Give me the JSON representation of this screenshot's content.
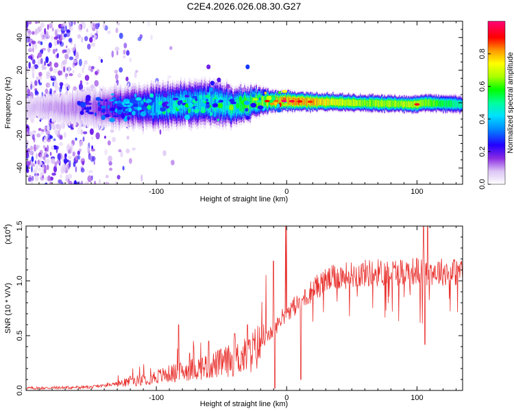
{
  "title": "C2E4.2026.026.08.30.G27",
  "chart_data": [
    {
      "type": "heatmap",
      "name": "spectrogram",
      "xlabel": "Height of straight line (km)",
      "ylabel": "Frequency (Hz)",
      "xlim": [
        -200,
        135
      ],
      "ylim": [
        -50,
        50
      ],
      "xticks": [
        -100,
        0,
        100
      ],
      "yticks": [
        -40,
        -20,
        0,
        20,
        40
      ],
      "colorbar": {
        "label": "Normalized spectral amplitude",
        "range": [
          0.0,
          1.0
        ],
        "ticks": [
          0.0,
          0.2,
          0.4,
          0.6,
          0.8
        ]
      },
      "band_center_hz": [
        [
          -200,
          -3
        ],
        [
          -150,
          -3
        ],
        [
          -100,
          -2
        ],
        [
          -60,
          0
        ],
        [
          -40,
          -2
        ],
        [
          -20,
          1
        ],
        [
          0,
          1
        ],
        [
          50,
          0
        ],
        [
          100,
          -1
        ],
        [
          105,
          0
        ],
        [
          135,
          -1
        ]
      ],
      "band_halfwidth_hz": [
        [
          -200,
          2
        ],
        [
          -150,
          4
        ],
        [
          -100,
          5
        ],
        [
          -60,
          5
        ],
        [
          -30,
          4
        ],
        [
          -10,
          2.5
        ],
        [
          50,
          2
        ],
        [
          135,
          2
        ]
      ],
      "peak_amplitude": [
        [
          -200,
          0.05
        ],
        [
          -150,
          0.12
        ],
        [
          -100,
          0.45
        ],
        [
          -60,
          0.5
        ],
        [
          -20,
          0.7
        ],
        [
          0,
          1.0
        ],
        [
          20,
          0.95
        ],
        [
          60,
          0.75
        ],
        [
          100,
          0.8
        ],
        [
          135,
          0.55
        ]
      ],
      "scatter_density": [
        [
          -200,
          1.0
        ],
        [
          -170,
          0.8
        ],
        [
          -150,
          0.5
        ],
        [
          -130,
          0.15
        ],
        [
          -100,
          0.03
        ],
        [
          -60,
          0.0
        ],
        [
          135,
          0.0
        ]
      ]
    },
    {
      "type": "line",
      "name": "snr",
      "color": "#e8312e",
      "xlabel": "Height of straight line (km)",
      "ylabel": "SNR (10 * V/V)",
      "scale_label": "(x10",
      "scale_exponent": "4",
      "scale_suffix": ")",
      "xlim": [
        -200,
        135
      ],
      "ylim": [
        0.0,
        1.5
      ],
      "xticks": [
        -100,
        0,
        100
      ],
      "yticks": [
        0.0,
        0.5,
        1.0,
        1.5
      ],
      "ytick_labels": [
        "0.0",
        "0.5",
        "1.0",
        "1.5"
      ],
      "baseline": [
        [
          -200,
          0.02
        ],
        [
          -150,
          0.03
        ],
        [
          -130,
          0.06
        ],
        [
          -110,
          0.1
        ],
        [
          -90,
          0.15
        ],
        [
          -70,
          0.2
        ],
        [
          -50,
          0.25
        ],
        [
          -30,
          0.32
        ],
        [
          -20,
          0.42
        ],
        [
          -10,
          0.55
        ],
        [
          0,
          0.72
        ],
        [
          10,
          0.8
        ],
        [
          20,
          0.92
        ],
        [
          30,
          1.0
        ],
        [
          40,
          1.04
        ],
        [
          60,
          1.07
        ],
        [
          80,
          1.08
        ],
        [
          100,
          1.09
        ],
        [
          135,
          1.08
        ]
      ],
      "spikes": [
        [
          -120,
          0.13
        ],
        [
          -83,
          0.6
        ],
        [
          -60,
          0.45
        ],
        [
          -40,
          0.52
        ],
        [
          -30,
          0.6
        ],
        [
          -10,
          1.18
        ],
        [
          -9,
          0.02
        ],
        [
          11,
          0.1
        ],
        [
          14,
          0.92
        ],
        [
          105,
          1.5
        ],
        [
          106,
          0.42
        ],
        [
          108,
          1.5
        ]
      ]
    }
  ]
}
